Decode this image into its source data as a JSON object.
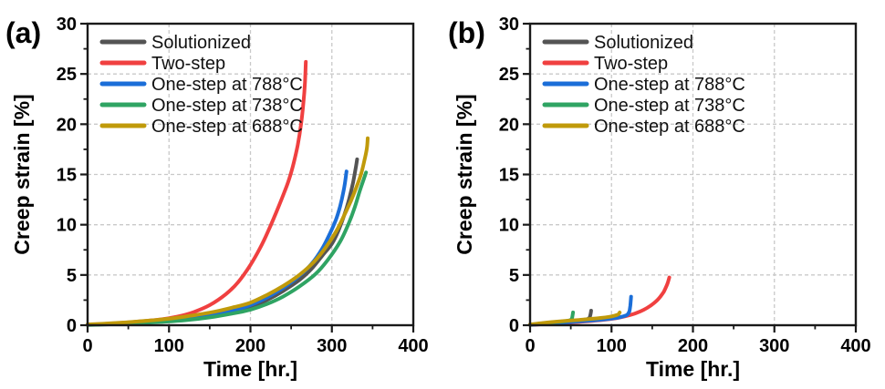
{
  "figure": {
    "background": "#ffffff",
    "frame_color": "#1a1a1a",
    "grid_color": "#c9c9c9",
    "text_color": "#000000"
  },
  "chart_data": [
    {
      "type": "line",
      "panel_label": "(a)",
      "title": "",
      "xlabel": "Time [hr.]",
      "ylabel": "Creep strain [%]",
      "xlim": [
        0,
        400
      ],
      "ylim": [
        0,
        30
      ],
      "xticks": [
        0,
        100,
        200,
        300,
        400
      ],
      "yticks": [
        0,
        5,
        10,
        15,
        20,
        25,
        30
      ],
      "x_minor_step": 50,
      "y_minor_step": 2.5,
      "grid": "dashed",
      "legend_position": "top-left",
      "legend": [
        "Solutionized",
        "Two-step",
        "One-step at 788°C",
        "One-step at 738°C",
        "One-step at 688°C"
      ],
      "series": [
        {
          "name": "Solutionized",
          "color": "#545454",
          "points": [
            [
              0,
              0.05
            ],
            [
              30,
              0.12
            ],
            [
              60,
              0.22
            ],
            [
              90,
              0.38
            ],
            [
              120,
              0.6
            ],
            [
              150,
              0.9
            ],
            [
              180,
              1.4
            ],
            [
              200,
              1.8
            ],
            [
              220,
              2.5
            ],
            [
              240,
              3.4
            ],
            [
              260,
              4.5
            ],
            [
              275,
              5.6
            ],
            [
              290,
              7.1
            ],
            [
              300,
              8.1
            ],
            [
              308,
              9.4
            ],
            [
              315,
              10.9
            ],
            [
              321,
              12.5
            ],
            [
              326,
              14.2
            ],
            [
              329,
              15.5
            ],
            [
              331,
              16.5
            ]
          ]
        },
        {
          "name": "Two-step",
          "color": "#f04040",
          "points": [
            [
              0,
              0.05
            ],
            [
              30,
              0.18
            ],
            [
              60,
              0.35
            ],
            [
              90,
              0.58
            ],
            [
              110,
              0.85
            ],
            [
              130,
              1.3
            ],
            [
              150,
              2.0
            ],
            [
              170,
              3.1
            ],
            [
              185,
              4.3
            ],
            [
              200,
              6.0
            ],
            [
              212,
              7.7
            ],
            [
              222,
              9.4
            ],
            [
              232,
              11.3
            ],
            [
              240,
              12.9
            ],
            [
              247,
              14.4
            ],
            [
              253,
              16.1
            ],
            [
              258,
              17.9
            ],
            [
              262,
              19.9
            ],
            [
              265,
              22.1
            ],
            [
              267,
              24.2
            ],
            [
              268,
              26.2
            ]
          ]
        },
        {
          "name": "One-step at 788°C",
          "color": "#1b6ed8",
          "points": [
            [
              0,
              0.05
            ],
            [
              30,
              0.13
            ],
            [
              60,
              0.25
            ],
            [
              90,
              0.42
            ],
            [
              120,
              0.66
            ],
            [
              150,
              1.0
            ],
            [
              180,
              1.5
            ],
            [
              200,
              2.0
            ],
            [
              220,
              2.75
            ],
            [
              240,
              3.7
            ],
            [
              260,
              4.9
            ],
            [
              275,
              6.1
            ],
            [
              288,
              7.6
            ],
            [
              298,
              9.2
            ],
            [
              305,
              10.5
            ],
            [
              310,
              11.8
            ],
            [
              314,
              13.2
            ],
            [
              316,
              14.1
            ],
            [
              318,
              15.3
            ]
          ]
        },
        {
          "name": "One-step at 738°C",
          "color": "#2fa463",
          "points": [
            [
              0,
              0.03
            ],
            [
              30,
              0.1
            ],
            [
              60,
              0.2
            ],
            [
              90,
              0.33
            ],
            [
              120,
              0.5
            ],
            [
              150,
              0.78
            ],
            [
              180,
              1.2
            ],
            [
              200,
              1.55
            ],
            [
              220,
              2.1
            ],
            [
              240,
              2.85
            ],
            [
              260,
              3.85
            ],
            [
              280,
              5.1
            ],
            [
              295,
              6.5
            ],
            [
              310,
              8.3
            ],
            [
              320,
              10.0
            ],
            [
              328,
              11.7
            ],
            [
              334,
              13.3
            ],
            [
              339,
              14.5
            ],
            [
              342,
              15.2
            ]
          ]
        },
        {
          "name": "One-step at 688°C",
          "color": "#c09a0a",
          "points": [
            [
              0,
              0.08
            ],
            [
              30,
              0.2
            ],
            [
              60,
              0.36
            ],
            [
              90,
              0.56
            ],
            [
              120,
              0.86
            ],
            [
              150,
              1.25
            ],
            [
              180,
              1.8
            ],
            [
              200,
              2.25
            ],
            [
              220,
              3.0
            ],
            [
              240,
              3.9
            ],
            [
              260,
              5.0
            ],
            [
              278,
              6.3
            ],
            [
              293,
              7.8
            ],
            [
              305,
              9.3
            ],
            [
              315,
              10.9
            ],
            [
              323,
              12.3
            ],
            [
              330,
              13.7
            ],
            [
              336,
              15.1
            ],
            [
              340,
              16.4
            ],
            [
              343,
              17.6
            ],
            [
              344,
              18.6
            ]
          ]
        }
      ]
    },
    {
      "type": "line",
      "panel_label": "(b)",
      "title": "",
      "xlabel": "Time [hr.]",
      "ylabel": "Creep strain [%]",
      "xlim": [
        0,
        400
      ],
      "ylim": [
        0,
        30
      ],
      "xticks": [
        0,
        100,
        200,
        300,
        400
      ],
      "yticks": [
        0,
        5,
        10,
        15,
        20,
        25,
        30
      ],
      "x_minor_step": 50,
      "y_minor_step": 2.5,
      "grid": "dashed",
      "legend_position": "top-left",
      "legend": [
        "Solutionized",
        "Two-step",
        "One-step at 788°C",
        "One-step at 738°C",
        "One-step at 688°C"
      ],
      "series": [
        {
          "name": "Solutionized",
          "color": "#545454",
          "points": [
            [
              0,
              0.05
            ],
            [
              15,
              0.15
            ],
            [
              30,
              0.27
            ],
            [
              45,
              0.38
            ],
            [
              55,
              0.46
            ],
            [
              63,
              0.52
            ],
            [
              68,
              0.57
            ],
            [
              71,
              0.63
            ],
            [
              73,
              0.76
            ],
            [
              74,
              1.0
            ],
            [
              74.6,
              1.25
            ],
            [
              75,
              1.45
            ]
          ]
        },
        {
          "name": "Two-step",
          "color": "#f04040",
          "points": [
            [
              0,
              0.03
            ],
            [
              20,
              0.12
            ],
            [
              40,
              0.22
            ],
            [
              60,
              0.33
            ],
            [
              80,
              0.46
            ],
            [
              100,
              0.63
            ],
            [
              110,
              0.76
            ],
            [
              120,
              0.95
            ],
            [
              130,
              1.2
            ],
            [
              140,
              1.55
            ],
            [
              148,
              1.95
            ],
            [
              155,
              2.4
            ],
            [
              160,
              2.85
            ],
            [
              164,
              3.3
            ],
            [
              167,
              3.8
            ],
            [
              169,
              4.2
            ],
            [
              171,
              4.75
            ]
          ]
        },
        {
          "name": "One-step at 788°C",
          "color": "#1b6ed8",
          "points": [
            [
              0,
              0.04
            ],
            [
              20,
              0.14
            ],
            [
              40,
              0.26
            ],
            [
              60,
              0.38
            ],
            [
              80,
              0.5
            ],
            [
              95,
              0.62
            ],
            [
              105,
              0.72
            ],
            [
              112,
              0.83
            ],
            [
              117,
              0.95
            ],
            [
              120,
              1.1
            ],
            [
              122,
              1.4
            ],
            [
              123,
              1.9
            ],
            [
              123.6,
              2.4
            ],
            [
              124,
              2.85
            ]
          ]
        },
        {
          "name": "One-step at 738°C",
          "color": "#2fa463",
          "points": [
            [
              0,
              0.05
            ],
            [
              12,
              0.15
            ],
            [
              24,
              0.26
            ],
            [
              35,
              0.34
            ],
            [
              42,
              0.4
            ],
            [
              47,
              0.46
            ],
            [
              50,
              0.53
            ],
            [
              51.5,
              0.72
            ],
            [
              52.2,
              1.0
            ],
            [
              52.8,
              1.28
            ]
          ]
        },
        {
          "name": "One-step at 688°C",
          "color": "#c09a0a",
          "points": [
            [
              0,
              0.08
            ],
            [
              15,
              0.22
            ],
            [
              30,
              0.34
            ],
            [
              45,
              0.44
            ],
            [
              60,
              0.53
            ],
            [
              75,
              0.63
            ],
            [
              88,
              0.73
            ],
            [
              97,
              0.83
            ],
            [
              103,
              0.93
            ],
            [
              107,
              1.03
            ],
            [
              109,
              1.13
            ],
            [
              110,
              1.27
            ]
          ]
        }
      ]
    }
  ]
}
